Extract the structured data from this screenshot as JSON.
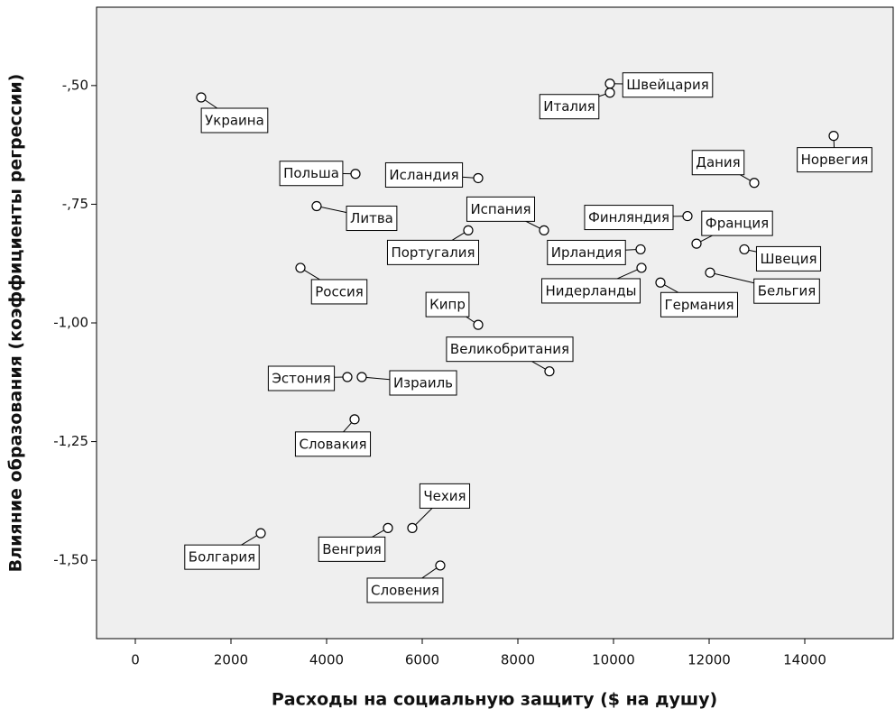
{
  "chart_data": {
    "type": "scatter",
    "x_label": "Расходы на социальную защиту ($ на душу)",
    "y_label": "Влияние образования (коэффициенты регрессии)",
    "point_labels": [
      "Украина",
      "Швейцария",
      "Италия",
      "Норвегия",
      "Польша",
      "Исландия",
      "Дания",
      "Литва",
      "Испания",
      "Португалия",
      "Финляндия",
      "Франция",
      "Швеция",
      "Ирландия",
      "Россия",
      "Нидерланды",
      "Бельгия",
      "Германия",
      "Кипр",
      "Великобритания",
      "Эстония",
      "Израиль",
      "Словакия",
      "Чехия",
      "Венгрия",
      "Болгария",
      "Словения"
    ],
    "x": [
      1377,
      9925,
      9925,
      14604,
      4604,
      7170,
      12943,
      3792,
      8547,
      6962,
      11547,
      11736,
      12736,
      10566,
      3453,
      10585,
      12019,
      10981,
      7170,
      8660,
      4434,
      4736,
      4585,
      5792,
      5283,
      2623,
      6377
    ],
    "values": [
      -0.525,
      -0.496,
      -0.515,
      -0.606,
      -0.686,
      -0.695,
      -0.705,
      -0.754,
      -0.805,
      -0.805,
      -0.775,
      -0.833,
      -0.845,
      -0.845,
      -0.884,
      -0.884,
      -0.894,
      -0.915,
      -1.004,
      -1.102,
      -1.114,
      -1.114,
      -1.203,
      -1.432,
      -1.432,
      -1.443,
      -1.511
    ],
    "xlim": [
      -811,
      15849
    ],
    "ylim": [
      -1.665,
      -0.335
    ],
    "xticks": [
      0,
      2000,
      4000,
      6000,
      8000,
      10000,
      12000,
      14000
    ],
    "yticks": [
      {
        "value": -0.5,
        "label": "-,50"
      },
      {
        "value": -0.75,
        "label": "-,75"
      },
      {
        "value": -1.0,
        "label": "-1,00"
      },
      {
        "value": -1.25,
        "label": "-1,25"
      },
      {
        "value": -1.5,
        "label": "-1,50"
      }
    ],
    "background": "#efefef",
    "marker_color": "#ffffff"
  }
}
